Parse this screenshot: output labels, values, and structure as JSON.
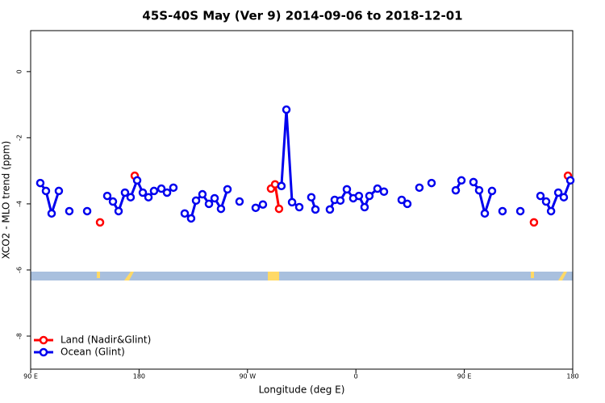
{
  "chart_data": {
    "type": "line",
    "title": "45S-40S May (Ver 9)   2014-09-06 to 2018-12-01",
    "xlabel": "Longitude (deg E)",
    "ylabel": "XCO2 - MLO trend (ppm)",
    "xlim": [
      90,
      540
    ],
    "ylim": [
      -9,
      1.24
    ],
    "xticks": [
      {
        "value": 90,
        "label": "90 E"
      },
      180,
      {
        "value": 270,
        "label": "90 W"
      },
      {
        "value": 360,
        "label": "0"
      },
      {
        "value": 450,
        "label": "90 E"
      },
      {
        "value": 540,
        "label": "180"
      }
    ],
    "yticks": [
      0,
      -2,
      -4,
      -6,
      -8
    ],
    "legend": "bottomleft",
    "series": [
      {
        "name": "Land (Nadir&Glint)",
        "color": "#ff0000",
        "x": [
          147.6,
          null,
          176.4,
          null,
          289.5,
          292.9,
          296.2,
          null,
          507.8,
          null,
          536.0
        ],
        "values": [
          -4.56,
          null,
          -3.15,
          null,
          -3.54,
          -3.41,
          -4.15,
          null,
          -4.56,
          null,
          -3.15
        ]
      },
      {
        "name": "Ocean (Glint)",
        "color": "#0000ee",
        "x": [
          98.0,
          102.7,
          107.4,
          113.4,
          null,
          122.1,
          null,
          136.9,
          null,
          153.6,
          158.3,
          163.0,
          168.3,
          173.0,
          178.4,
          183.1,
          187.8,
          192.4,
          198.5,
          203.2,
          208.5,
          null,
          217.9,
          223.2,
          227.3,
          232.6,
          238.0,
          242.7,
          248.0,
          253.4,
          null,
          263.4,
          null,
          276.8,
          282.8,
          null,
          298.2,
          302.3,
          307.0,
          313.0,
          null,
          323.0,
          326.4,
          null,
          338.4,
          342.4,
          347.1,
          352.5,
          357.8,
          362.5,
          367.2,
          371.2,
          377.9,
          383.3,
          null,
          398.0,
          402.7,
          null,
          412.7,
          null,
          422.8,
          null,
          442.9,
          447.6,
          null,
          457.6,
          462.3,
          467.0,
          473.0,
          null,
          481.7,
          null,
          496.5,
          null,
          513.2,
          517.9,
          522.0,
          528.0,
          532.6,
          538.0
        ],
        "values": [
          -3.37,
          -3.61,
          -4.29,
          -3.61,
          null,
          -4.22,
          null,
          -4.22,
          null,
          -3.76,
          -3.93,
          -4.22,
          -3.66,
          -3.8,
          -3.29,
          -3.66,
          -3.8,
          -3.61,
          -3.54,
          -3.66,
          -3.51,
          null,
          -4.29,
          -4.44,
          -3.9,
          -3.71,
          -4.0,
          -3.83,
          -4.15,
          -3.56,
          null,
          -3.93,
          null,
          -4.12,
          -4.02,
          null,
          -3.46,
          -1.15,
          -3.95,
          -4.1,
          null,
          -3.8,
          -4.17,
          null,
          -4.17,
          -3.88,
          -3.9,
          -3.56,
          -3.83,
          -3.76,
          -4.1,
          -3.76,
          -3.54,
          -3.63,
          null,
          -3.88,
          -4.0,
          null,
          -3.51,
          null,
          -3.37,
          null,
          -3.59,
          -3.29,
          null,
          -3.34,
          -3.59,
          -4.29,
          -3.61,
          null,
          -4.22,
          null,
          -4.22,
          null,
          -3.76,
          -3.93,
          -4.22,
          -3.66,
          -3.8,
          -3.29
        ]
      }
    ]
  }
}
